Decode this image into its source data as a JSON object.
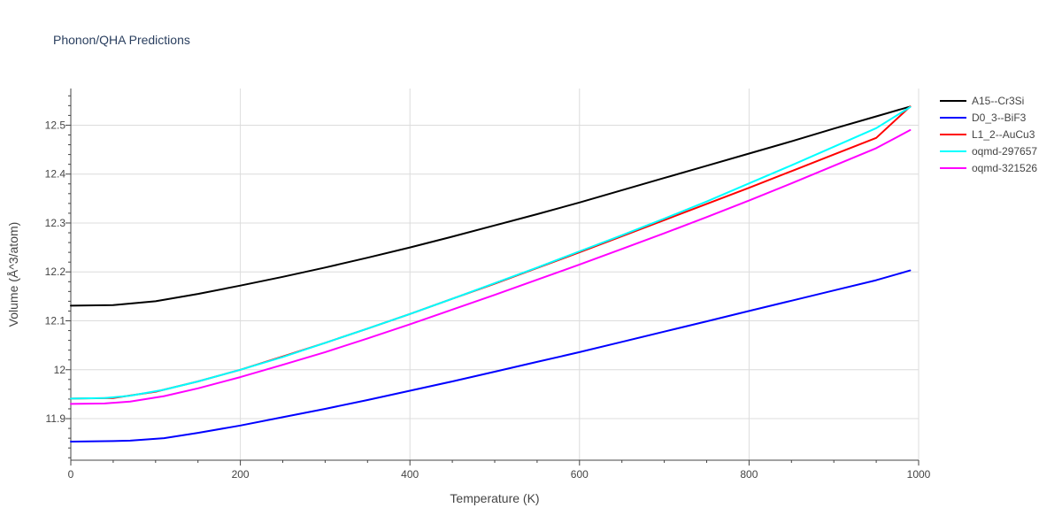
{
  "chart_data": {
    "type": "line",
    "title": "Phonon/QHA Predictions",
    "xlabel": "Temperature (K)",
    "ylabel": "Volume (Å^3/atom)",
    "xlim": [
      0,
      1000
    ],
    "ylim": [
      11.815,
      12.575
    ],
    "x_ticks": [
      0,
      200,
      400,
      600,
      800,
      1000
    ],
    "x_tick_labels": [
      "0",
      "200",
      "400",
      "600",
      "800",
      "1000"
    ],
    "y_ticks": [
      11.9,
      12.0,
      12.1,
      12.2,
      12.3,
      12.4,
      12.5
    ],
    "y_tick_labels": [
      "11.9",
      "12",
      "12.1",
      "12.2",
      "12.3",
      "12.4",
      "12.5"
    ],
    "grid": true,
    "legend_position": "top-right",
    "series": [
      {
        "name": "A15--Cr3Si",
        "color": "#000000",
        "x": [
          0,
          50,
          100,
          150,
          200,
          250,
          300,
          350,
          400,
          450,
          500,
          550,
          600,
          650,
          700,
          750,
          800,
          850,
          900,
          950,
          990
        ],
        "y": [
          12.131,
          12.132,
          12.14,
          12.155,
          12.172,
          12.19,
          12.209,
          12.229,
          12.25,
          12.272,
          12.295,
          12.318,
          12.342,
          12.367,
          12.392,
          12.417,
          12.442,
          12.467,
          12.493,
          12.518,
          12.538
        ]
      },
      {
        "name": "D0_3--BiF3",
        "color": "#0000ff",
        "x": [
          0,
          50,
          70,
          110,
          150,
          200,
          250,
          300,
          350,
          400,
          450,
          500,
          550,
          600,
          650,
          700,
          750,
          800,
          850,
          900,
          950,
          990
        ],
        "y": [
          11.853,
          11.854,
          11.855,
          11.86,
          11.871,
          11.886,
          11.903,
          11.92,
          11.938,
          11.957,
          11.976,
          11.996,
          12.016,
          12.036,
          12.057,
          12.078,
          12.099,
          12.12,
          12.141,
          12.162,
          12.183,
          12.203
        ]
      },
      {
        "name": "L1_2--AuCu3",
        "color": "#ff0000",
        "x": [
          0,
          50,
          100,
          150,
          200,
          250,
          300,
          350,
          400,
          450,
          500,
          550,
          600,
          650,
          700,
          750,
          800,
          850,
          900,
          950,
          990
        ],
        "y": [
          11.941,
          11.942,
          11.955,
          11.976,
          12.0,
          12.027,
          12.055,
          12.084,
          12.114,
          12.145,
          12.176,
          12.208,
          12.24,
          12.273,
          12.306,
          12.339,
          12.372,
          12.406,
          12.44,
          12.474,
          12.538
        ]
      },
      {
        "name": "oqmd-297657",
        "color": "#00ffff",
        "x": [
          0,
          40,
          70,
          110,
          150,
          200,
          250,
          300,
          350,
          400,
          450,
          500,
          550,
          600,
          650,
          700,
          750,
          800,
          850,
          900,
          950,
          990
        ],
        "y": [
          11.941,
          11.942,
          11.947,
          11.959,
          11.976,
          12.0,
          12.026,
          12.055,
          12.084,
          12.114,
          12.145,
          12.177,
          12.209,
          12.242,
          12.275,
          12.309,
          12.344,
          12.381,
          12.418,
          12.456,
          12.494,
          12.537
        ]
      },
      {
        "name": "oqmd-321526",
        "color": "#ff00ff",
        "x": [
          0,
          40,
          70,
          110,
          150,
          200,
          250,
          300,
          350,
          400,
          450,
          500,
          550,
          600,
          650,
          700,
          750,
          800,
          850,
          900,
          950,
          990
        ],
        "y": [
          11.93,
          11.931,
          11.935,
          11.946,
          11.962,
          11.985,
          12.01,
          12.036,
          12.064,
          12.093,
          12.123,
          12.153,
          12.184,
          12.215,
          12.247,
          12.279,
          12.312,
          12.346,
          12.381,
          12.417,
          12.453,
          12.49
        ]
      }
    ]
  }
}
